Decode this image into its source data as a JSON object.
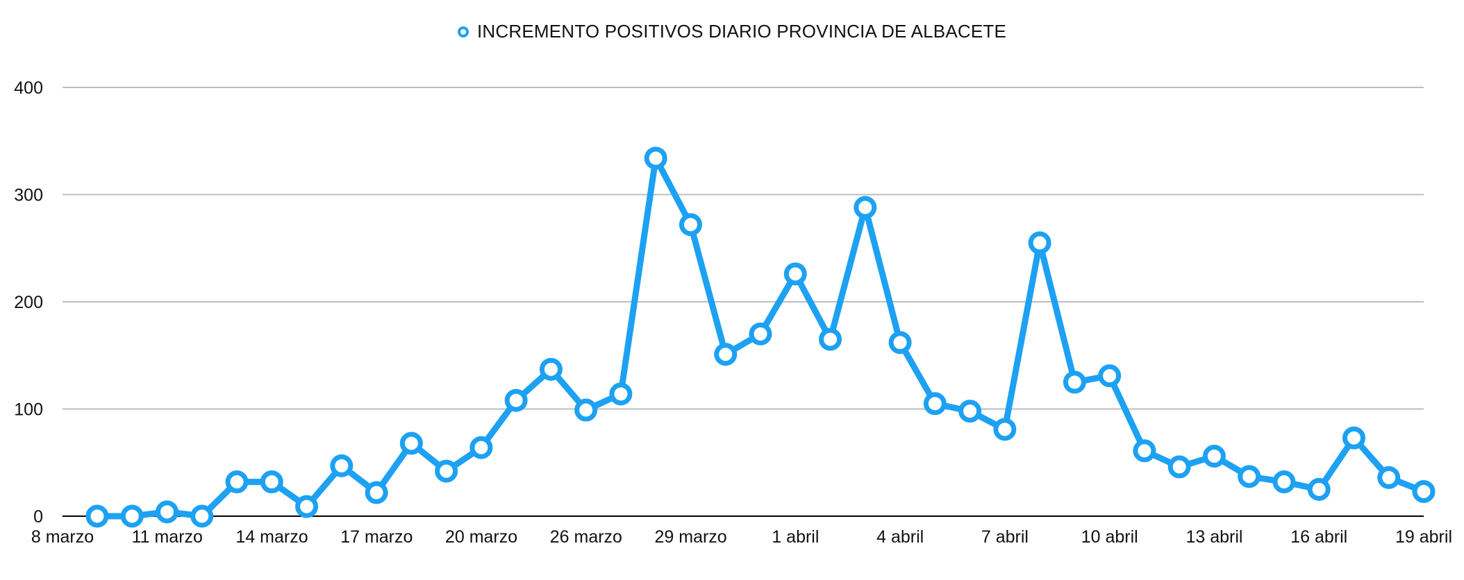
{
  "chart_data": {
    "type": "line",
    "legend": {
      "position": "top-center",
      "entries": [
        "INCREMENTO POSITIVOS DIARIO PROVINCIA DE ALBACETE"
      ]
    },
    "series": [
      {
        "name": "INCREMENTO POSITIVOS DIARIO PROVINCIA DE ALBACETE",
        "color": "#1da1f2",
        "values": [
          0,
          0,
          4,
          0,
          32,
          32,
          9,
          47,
          22,
          68,
          42,
          64,
          108,
          137,
          99,
          114,
          334,
          272,
          151,
          170,
          226,
          165,
          288,
          162,
          105,
          98,
          81,
          255,
          125,
          131,
          61,
          46,
          56,
          37,
          32,
          25,
          73,
          36,
          23
        ]
      }
    ],
    "x_tick_labels": [
      "8 marzo",
      "11 marzo",
      "14 marzo",
      "17 marzo",
      "20 marzo",
      "26 marzo",
      "29 marzo",
      "1 abril",
      "4 abril",
      "7 abril",
      "10 abril",
      "13 abril",
      "16 abril",
      "19 abril"
    ],
    "y_ticks": [
      0,
      100,
      200,
      300,
      400
    ],
    "ylim": [
      0,
      400
    ],
    "grid": "horizontal",
    "title": "",
    "xlabel": "",
    "ylabel": ""
  }
}
